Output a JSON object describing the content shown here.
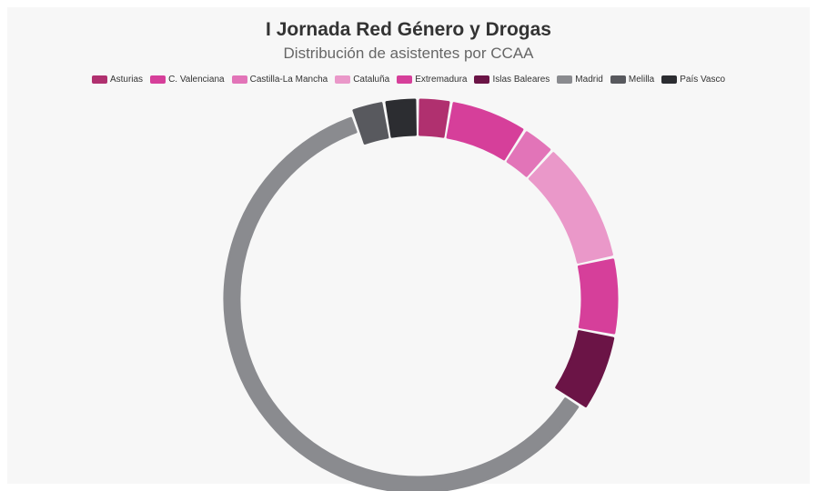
{
  "chart_data": {
    "type": "pie",
    "variant": "donut",
    "title": "I Jornada Red Género y Drogas",
    "subtitle": "Distribución de asistentes por CCAA",
    "legend_position": "top",
    "categories": [
      "Asturias",
      "C. Valenciana",
      "Castilla-La Mancha",
      "Cataluña",
      "Extremadura",
      "Islas Baleares",
      "Madrid",
      "Melilla",
      "País Vasco"
    ],
    "slices": [
      {
        "label": "Asturias",
        "value": 3,
        "color": "#b0306f"
      },
      {
        "label": "C. Valenciana",
        "value": 7,
        "color": "#d63f9a"
      },
      {
        "label": "Castilla-La Mancha",
        "value": 3,
        "color": "#e274b8"
      },
      {
        "label": "Cataluña",
        "value": 11,
        "color": "#ea98c9"
      },
      {
        "label": "Extremadura",
        "value": 7,
        "color": "#d63f9a"
      },
      {
        "label": "Islas Baleares",
        "value": 7,
        "color": "#6b1446"
      },
      {
        "label": "Madrid",
        "value": 67,
        "color": "#8a8b8f"
      },
      {
        "label": "Melilla",
        "value": 3,
        "color": "#58595e"
      },
      {
        "label": "País Vasco",
        "value": 3,
        "color": "#2c2d31"
      }
    ],
    "start_at": "top",
    "direction": "clockwise"
  }
}
